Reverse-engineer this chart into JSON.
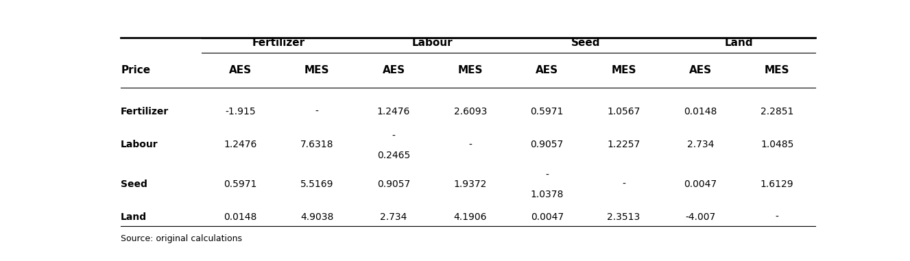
{
  "col_groups": [
    "Fertilizer",
    "Labour",
    "Seed",
    "Land"
  ],
  "subheaders": [
    "AES",
    "MES",
    "AES",
    "MES",
    "AES",
    "MES",
    "AES",
    "MES"
  ],
  "row_labels": [
    "Fertilizer",
    "Labour",
    "Seed",
    "Land"
  ],
  "rows": [
    [
      "-1.915",
      "-",
      "1.2476",
      "2.6093",
      "0.5971",
      "1.0567",
      "0.0148",
      "2.2851"
    ],
    [
      "1.2476",
      "7.6318",
      "-",
      "-",
      "0.9057",
      "1.2257",
      "2.734",
      "1.0485"
    ],
    [
      "0.5971",
      "5.5169",
      "0.9057",
      "1.9372",
      "-",
      "-",
      "0.0047",
      "1.6129"
    ],
    [
      "0.0148",
      "4.9038",
      "2.734",
      "4.1906",
      "0.0047",
      "2.3513",
      "-4.007",
      "-"
    ]
  ],
  "extra_lines": {
    "1": {
      "col": 2,
      "text": "0.2465"
    },
    "2": {
      "col": 4,
      "text": "1.0378"
    }
  },
  "source": "Source: original calculations",
  "price_label": "Price",
  "background_color": "#ffffff",
  "text_color": "#000000",
  "group_fontsize": 11,
  "header_fontsize": 11,
  "cell_fontsize": 10,
  "source_fontsize": 9
}
